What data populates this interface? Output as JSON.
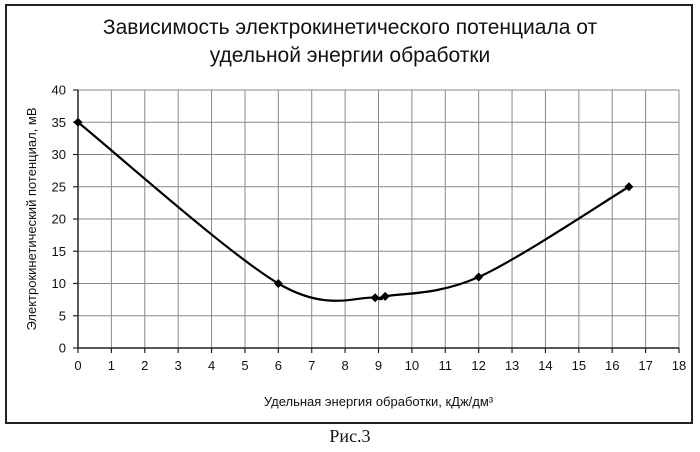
{
  "chart_data": {
    "type": "line",
    "title_lines": [
      "Зависимость электрокинетического потенциала от",
      "удельной энергии обработки"
    ],
    "xlabel": "Удельная энергия обработки, кДж/дм³",
    "ylabel": "Электрокинетический потенциал, мВ",
    "xlim": [
      0,
      18
    ],
    "ylim": [
      0,
      40
    ],
    "x_ticks": [
      "0",
      "1",
      "2",
      "3",
      "4",
      "5",
      "6",
      "7",
      "8",
      "9",
      "10",
      "11",
      "12",
      "13",
      "14",
      "15",
      "16",
      "17",
      "18"
    ],
    "y_ticks": [
      "0",
      "5",
      "10",
      "15",
      "20",
      "25",
      "30",
      "35",
      "40"
    ],
    "grid": true,
    "legend": "none",
    "series": [
      {
        "color": "#000000",
        "smooth": true,
        "marker": "diamond",
        "points": [
          {
            "x": 0,
            "y": 35
          },
          {
            "x": 6,
            "y": 10
          },
          {
            "x": 8.9,
            "y": 7.8
          },
          {
            "x": 9.2,
            "y": 8.0
          },
          {
            "x": 12,
            "y": 11
          },
          {
            "x": 16.5,
            "y": 25
          }
        ]
      }
    ]
  },
  "caption": "Рис.3"
}
